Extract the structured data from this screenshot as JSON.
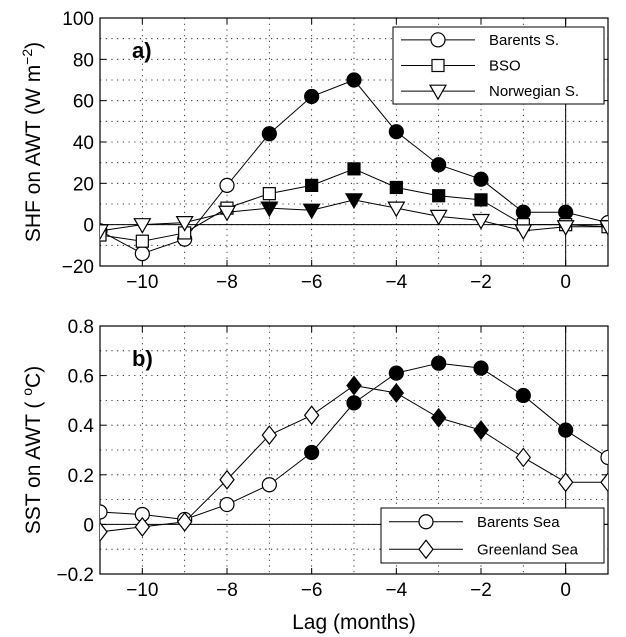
{
  "chart_data": [
    {
      "type": "line",
      "panel_label": "a)",
      "ylabel": "SHF on AWT (W m",
      "ylabel_sup": "−2",
      "ylabel_end": ")",
      "xlim": [
        -11,
        1
      ],
      "ylim": [
        -20,
        100
      ],
      "xticks": [
        -10,
        -8,
        -6,
        -4,
        -2,
        0
      ],
      "xtick_labels": [
        "−10",
        "−8",
        "−6",
        "−4",
        "−2",
        "0"
      ],
      "yticks": [
        -20,
        0,
        20,
        40,
        60,
        80,
        100
      ],
      "ytick_labels": [
        "−20",
        "0",
        "20",
        "40",
        "60",
        "80",
        "100"
      ],
      "grid": true,
      "legend_position": "top-right",
      "x": [
        -11,
        -10,
        -9,
        -8,
        -7,
        -6,
        -5,
        -4,
        -3,
        -2,
        -1,
        0,
        1
      ],
      "series": [
        {
          "name": "Barents S.",
          "marker": "circle",
          "values": [
            -3,
            -14,
            -7,
            19,
            44,
            62,
            70,
            45,
            29,
            22,
            6,
            6,
            1
          ],
          "filled": [
            false,
            false,
            false,
            false,
            true,
            true,
            true,
            true,
            true,
            true,
            true,
            true,
            false
          ]
        },
        {
          "name": "BSO",
          "marker": "square",
          "values": [
            -5,
            -8,
            -4,
            8,
            15,
            19,
            27,
            18,
            14,
            12,
            0,
            0,
            -1
          ],
          "filled": [
            false,
            false,
            false,
            false,
            false,
            true,
            true,
            true,
            true,
            true,
            false,
            false,
            false
          ]
        },
        {
          "name": "Norwegian S.",
          "marker": "triangle-down",
          "values": [
            -3,
            0,
            1,
            6,
            8,
            7,
            12,
            8,
            4,
            2,
            -3,
            -1,
            -1
          ],
          "filled": [
            false,
            false,
            false,
            false,
            true,
            true,
            true,
            false,
            false,
            false,
            false,
            false,
            false
          ]
        }
      ]
    },
    {
      "type": "line",
      "panel_label": "b)",
      "ylabel": "SST on AWT ( ",
      "ylabel_sup": "o",
      "ylabel_end": "C)",
      "xlabel": "Lag (months)",
      "xlim": [
        -11,
        1
      ],
      "ylim": [
        -0.2,
        0.8
      ],
      "xticks": [
        -10,
        -8,
        -6,
        -4,
        -2,
        0
      ],
      "xtick_labels": [
        "−10",
        "−8",
        "−6",
        "−4",
        "−2",
        "0"
      ],
      "yticks": [
        -0.2,
        0,
        0.2,
        0.4,
        0.6,
        0.8
      ],
      "ytick_labels": [
        "−0.2",
        "0",
        "0.2",
        "0.4",
        "0.6",
        "0.8"
      ],
      "grid": true,
      "legend_position": "bottom-right",
      "x": [
        -11,
        -10,
        -9,
        -8,
        -7,
        -6,
        -5,
        -4,
        -3,
        -2,
        -1,
        0,
        1
      ],
      "series": [
        {
          "name": "Barents Sea",
          "marker": "circle",
          "values": [
            0.05,
            0.04,
            0.02,
            0.08,
            0.16,
            0.29,
            0.49,
            0.61,
            0.65,
            0.63,
            0.52,
            0.38,
            0.27
          ],
          "filled": [
            false,
            false,
            false,
            false,
            false,
            true,
            true,
            true,
            true,
            true,
            true,
            true,
            false
          ]
        },
        {
          "name": "Greenland Sea",
          "marker": "diamond",
          "values": [
            -0.03,
            -0.01,
            0.01,
            0.18,
            0.36,
            0.44,
            0.56,
            0.53,
            0.43,
            0.38,
            0.27,
            0.17,
            0.17
          ],
          "filled": [
            false,
            false,
            false,
            false,
            false,
            false,
            true,
            true,
            true,
            true,
            false,
            false,
            false
          ]
        }
      ]
    }
  ]
}
